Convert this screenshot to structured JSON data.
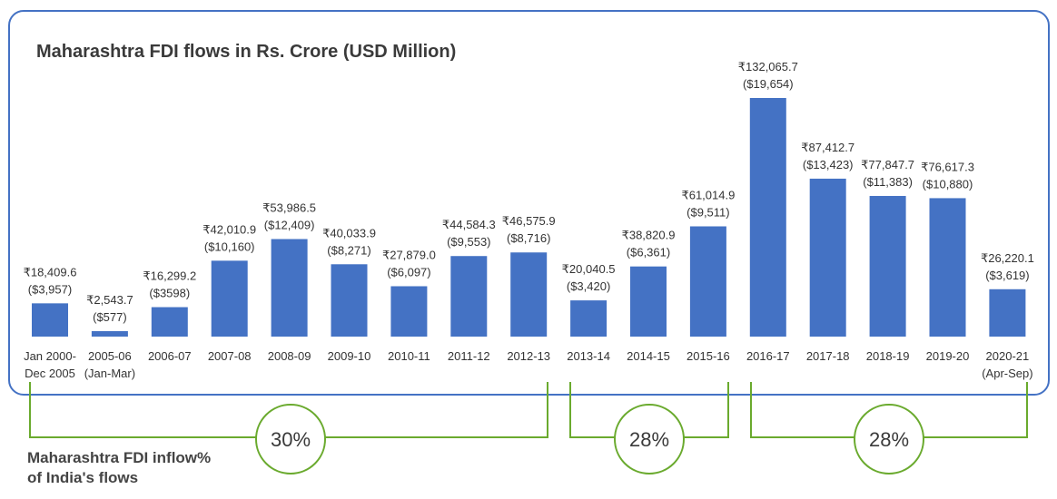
{
  "chart_data": {
    "type": "bar",
    "title": "Maharashtra FDI flows in Rs. Crore (USD Million)",
    "categories": [
      [
        "Jan 2000-",
        "Dec 2005"
      ],
      [
        "2005-06",
        "(Jan-Mar)"
      ],
      [
        "2006-07"
      ],
      [
        "2007-08"
      ],
      [
        "2008-09"
      ],
      [
        "2009-10"
      ],
      [
        "2010-11"
      ],
      [
        "2011-12"
      ],
      [
        "2012-13"
      ],
      [
        "2013-14"
      ],
      [
        "2014-15"
      ],
      [
        "2015-16"
      ],
      [
        "2016-17"
      ],
      [
        "2017-18"
      ],
      [
        "2018-19"
      ],
      [
        "2019-20"
      ],
      [
        "2020-21",
        "(Apr-Sep)"
      ]
    ],
    "values_inr_crore": [
      18409.6,
      2543.7,
      16299.2,
      42010.9,
      53986.5,
      40033.9,
      27879.0,
      44584.3,
      46575.9,
      20040.5,
      38820.9,
      61014.9,
      132065.7,
      87412.7,
      77847.7,
      76617.3,
      26220.1
    ],
    "labels_inr": [
      "₹18,409.6",
      "₹2,543.7",
      "₹16,299.2",
      "₹42,010.9",
      "₹53,986.5",
      "₹40,033.9",
      "₹27,879.0",
      "₹44,584.3",
      "₹46,575.9",
      "₹20,040.5",
      "₹38,820.9",
      "₹61,014.9",
      "₹132,065.7",
      "₹87,412.7",
      "₹77,847.7",
      "₹76,617.3",
      "₹26,220.1"
    ],
    "labels_usd": [
      "($3,957)",
      "($577)",
      "($3598)",
      "($10,160)",
      "($12,409)",
      "($8,271)",
      "($6,097)",
      "($9,553)",
      "($8,716)",
      "($3,420)",
      "($6,361)",
      "($9,511)",
      "($19,654)",
      "($13,423)",
      "($11,383)",
      "($10,880)",
      "($3,619)"
    ],
    "bar_color": "#4472c4",
    "grid": false,
    "share_groups": [
      {
        "from": 0,
        "to": 8,
        "label": "30%"
      },
      {
        "from": 9,
        "to": 11,
        "label": "28%"
      },
      {
        "from": 12,
        "to": 16,
        "label": "28%"
      }
    ],
    "share_note": [
      "Maharashtra FDI inflow%",
      "of India's flows"
    ],
    "frame_color": "#4472c4",
    "bracket_color": "#6aaa2e"
  }
}
